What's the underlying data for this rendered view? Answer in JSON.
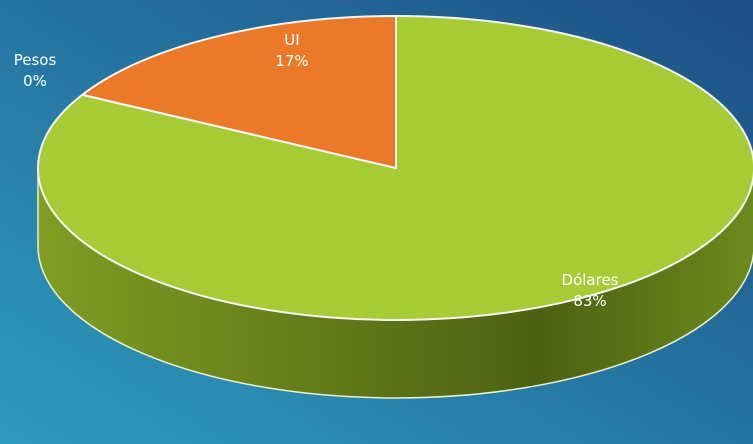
{
  "chart_data": {
    "type": "pie",
    "categories": [
      "Dólares",
      "Pesos",
      "UI"
    ],
    "values": [
      83,
      0,
      17
    ],
    "value_labels": [
      "83%",
      "0%",
      "17%"
    ],
    "colors": [
      "#a6cb34",
      "#9e9e9e",
      "#ea7a2a"
    ]
  }
}
